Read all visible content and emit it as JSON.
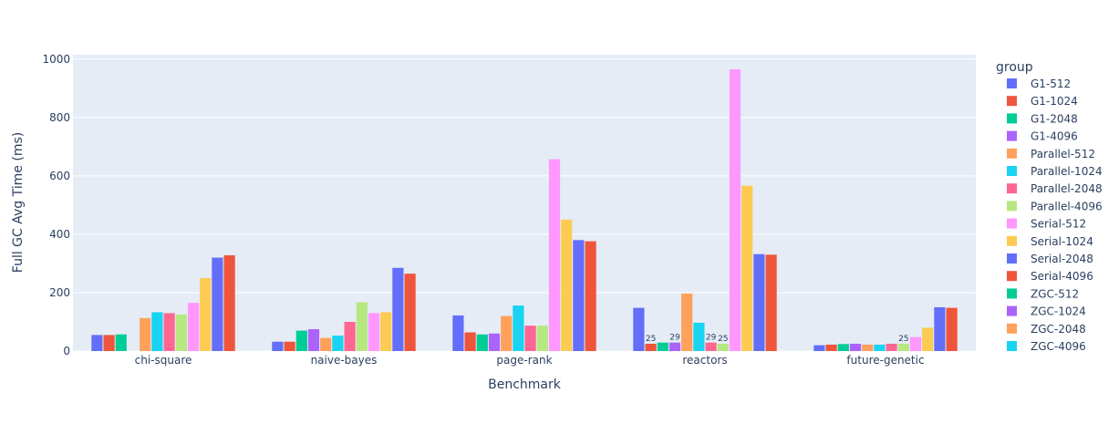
{
  "chart_data": {
    "type": "bar",
    "barmode": "group",
    "xlabel": "Benchmark",
    "ylabel": "Full GC Avg Time (ms)",
    "ylim": [
      0,
      1015
    ],
    "yticks": [
      0,
      200,
      400,
      600,
      800,
      1000
    ],
    "grid": true,
    "legend_title": "group",
    "legend_position": "right",
    "categories": [
      "chi-square",
      "naive-bayes",
      "page-rank",
      "reactors",
      "future-genetic"
    ],
    "series": [
      {
        "name": "G1-512",
        "color": "#636efa",
        "values": [
          55,
          32,
          122,
          148,
          20
        ]
      },
      {
        "name": "G1-1024",
        "color": "#EF553B",
        "values": [
          55,
          32,
          64,
          25,
          22
        ]
      },
      {
        "name": "G1-2048",
        "color": "#00cc96",
        "values": [
          57,
          70,
          57,
          29,
          24
        ]
      },
      {
        "name": "G1-4096",
        "color": "#ab63fa",
        "values": null
      },
      {
        "name": "Parallel-512",
        "color": "#FFA15A",
        "values": [
          113,
          45,
          120,
          197,
          22
        ]
      },
      {
        "name": "Parallel-1024",
        "color": "#19d3f3",
        "values": [
          133,
          53,
          156,
          97,
          22
        ]
      },
      {
        "name": "Parallel-2048",
        "color": "#FF6692",
        "values": [
          130,
          100,
          87,
          29,
          25
        ]
      },
      {
        "name": "Parallel-4096",
        "color": "#B6E880",
        "values": [
          125,
          167,
          87,
          25,
          25
        ]
      },
      {
        "name": "Serial-512",
        "color": "#FF97FF",
        "values": [
          165,
          130,
          657,
          965,
          48
        ]
      },
      {
        "name": "Serial-1024",
        "color": "#FECB52",
        "values": [
          250,
          133,
          450,
          566,
          80
        ]
      },
      {
        "name": "Serial-2048",
        "color": "#636efa",
        "values": [
          320,
          285,
          380,
          332,
          150
        ]
      },
      {
        "name": "Serial-4096",
        "color": "#EF553B",
        "values": [
          328,
          265,
          376,
          330,
          148
        ]
      },
      {
        "name": "ZGC-512",
        "color": "#00cc96",
        "values": null
      },
      {
        "name": "ZGC-1024",
        "color": "#ab63fa",
        "values": null
      },
      {
        "name": "ZGC-2048",
        "color": "#FFA15A",
        "values": null
      },
      {
        "name": "ZGC-4096",
        "color": "#19d3f3",
        "values": null
      }
    ],
    "bar_values_g1_4096": [
      0,
      75,
      60,
      29,
      25
    ],
    "outside_labels": [
      {
        "category": "reactors",
        "series": "G1-1024",
        "text": "25"
      },
      {
        "category": "reactors",
        "series": "G1-4096",
        "text": "29"
      },
      {
        "category": "reactors",
        "series": "Parallel-2048",
        "text": "29"
      },
      {
        "category": "reactors",
        "series": "Parallel-4096",
        "text": "25"
      },
      {
        "category": "future-genetic",
        "series": "Parallel-4096",
        "text": "25"
      }
    ]
  }
}
